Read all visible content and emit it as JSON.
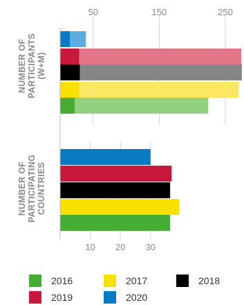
{
  "chart_data": [
    {
      "type": "bar",
      "orientation": "horizontal",
      "group_label": [
        "NUMBER OF",
        "PARTICIPANTS",
        "(W+M)"
      ],
      "xticks": [
        "50",
        "150",
        "250"
      ],
      "xlim": [
        0,
        280
      ],
      "categories": [
        "2020",
        "2019",
        "2018",
        "2017",
        "2016"
      ],
      "series": [
        {
          "name": "W",
          "values": [
            15,
            29,
            30,
            29,
            22
          ]
        },
        {
          "name": "M",
          "values": [
            24,
            245,
            245,
            241,
            202
          ]
        }
      ]
    },
    {
      "type": "bar",
      "orientation": "horizontal",
      "group_label": [
        "NUMBER OF",
        "PARTICIPATING",
        "COUNTRIES"
      ],
      "xticks": [
        "10",
        "20",
        "30"
      ],
      "xlim": [
        0,
        40
      ],
      "categories": [
        "2020",
        "2019",
        "2018",
        "2017",
        "2016"
      ],
      "values": [
        30,
        37,
        36.5,
        39.5,
        36.5
      ]
    }
  ],
  "legend": [
    {
      "label": "2016",
      "color": "#46ad34"
    },
    {
      "label": "2017",
      "color": "#fae000"
    },
    {
      "label": "2018",
      "color": "#000000"
    },
    {
      "label": "2019",
      "color": "#c8183c"
    },
    {
      "label": "2020",
      "color": "#0a7ac4"
    }
  ],
  "colors": {
    "2020": {
      "dark": "#0a7ac4",
      "light": "#5aafe0"
    },
    "2019": {
      "dark": "#c8183c",
      "light": "#e27587"
    },
    "2018": {
      "dark": "#000000",
      "light": "#868686"
    },
    "2017": {
      "dark": "#fae000",
      "light": "#fbe762"
    },
    "2016": {
      "dark": "#46ad34",
      "light": "#93d07f"
    },
    "gridline": "#d3d3d3",
    "axis": "#bdbdbd"
  }
}
